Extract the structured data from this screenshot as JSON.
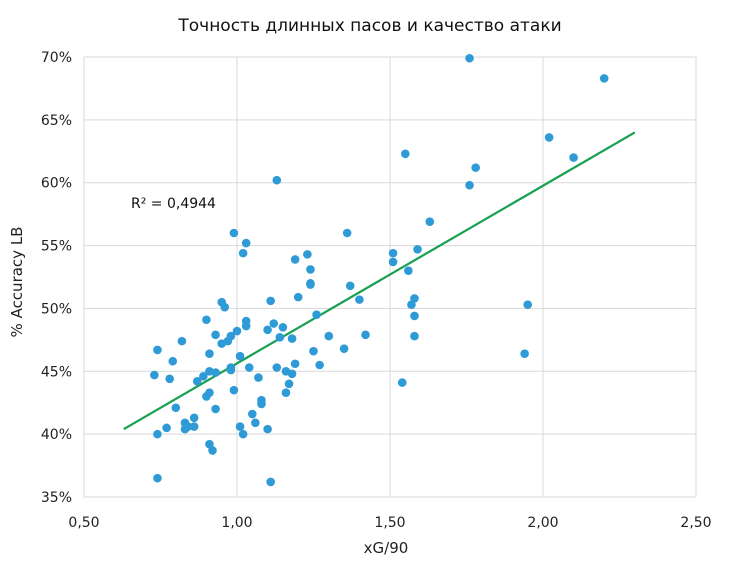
{
  "chart_data": {
    "type": "scatter",
    "title": "Точность длинных пасов и качество атаки",
    "xlabel": "xG/90",
    "ylabel": "% Accuracy LB",
    "xlim": [
      0.5,
      2.5
    ],
    "ylim": [
      35,
      70
    ],
    "x_ticks": [
      0.5,
      1.0,
      1.5,
      2.0,
      2.5
    ],
    "x_tick_labels": [
      "0,50",
      "1,00",
      "1,50",
      "2,00",
      "2,50"
    ],
    "y_ticks": [
      35,
      40,
      45,
      50,
      55,
      60,
      65,
      70
    ],
    "y_tick_labels": [
      "35%",
      "40%",
      "45%",
      "50%",
      "55%",
      "60%",
      "65%",
      "70%"
    ],
    "grid": true,
    "point_color": "#2e9bd6",
    "trendline": {
      "color": "#16a050",
      "x": [
        0.63,
        2.3
      ],
      "y": [
        40.4,
        64.0
      ],
      "r2_label": "R² = 0,4944"
    },
    "points": [
      [
        0.73,
        44.7
      ],
      [
        0.74,
        46.7
      ],
      [
        0.74,
        40.0
      ],
      [
        0.74,
        36.5
      ],
      [
        0.77,
        40.5
      ],
      [
        0.78,
        44.4
      ],
      [
        0.79,
        45.8
      ],
      [
        0.8,
        42.1
      ],
      [
        0.82,
        47.4
      ],
      [
        0.83,
        40.4
      ],
      [
        0.83,
        40.9
      ],
      [
        0.84,
        40.6
      ],
      [
        0.86,
        41.3
      ],
      [
        0.86,
        40.6
      ],
      [
        0.87,
        44.2
      ],
      [
        0.89,
        44.6
      ],
      [
        0.9,
        43.0
      ],
      [
        0.9,
        49.1
      ],
      [
        0.91,
        46.4
      ],
      [
        0.91,
        43.3
      ],
      [
        0.91,
        39.2
      ],
      [
        0.91,
        45.0
      ],
      [
        0.92,
        38.7
      ],
      [
        0.93,
        44.9
      ],
      [
        0.93,
        42.0
      ],
      [
        0.93,
        47.9
      ],
      [
        0.95,
        47.2
      ],
      [
        0.95,
        50.5
      ],
      [
        0.96,
        50.1
      ],
      [
        0.97,
        47.4
      ],
      [
        0.98,
        47.8
      ],
      [
        0.98,
        45.1
      ],
      [
        0.98,
        45.3
      ],
      [
        0.99,
        56.0
      ],
      [
        0.99,
        43.5
      ],
      [
        1.0,
        48.2
      ],
      [
        1.01,
        46.2
      ],
      [
        1.01,
        40.6
      ],
      [
        1.02,
        54.4
      ],
      [
        1.02,
        40.0
      ],
      [
        1.03,
        48.6
      ],
      [
        1.03,
        49.0
      ],
      [
        1.03,
        55.2
      ],
      [
        1.04,
        45.3
      ],
      [
        1.05,
        41.6
      ],
      [
        1.06,
        40.9
      ],
      [
        1.07,
        44.5
      ],
      [
        1.08,
        42.7
      ],
      [
        1.08,
        42.4
      ],
      [
        1.1,
        40.4
      ],
      [
        1.1,
        48.3
      ],
      [
        1.11,
        50.6
      ],
      [
        1.11,
        36.2
      ],
      [
        1.12,
        48.8
      ],
      [
        1.13,
        60.2
      ],
      [
        1.13,
        45.3
      ],
      [
        1.14,
        47.7
      ],
      [
        1.15,
        48.5
      ],
      [
        1.16,
        43.3
      ],
      [
        1.16,
        45.0
      ],
      [
        1.17,
        44.0
      ],
      [
        1.18,
        47.6
      ],
      [
        1.18,
        44.8
      ],
      [
        1.19,
        53.9
      ],
      [
        1.19,
        45.6
      ],
      [
        1.2,
        50.9
      ],
      [
        1.23,
        54.3
      ],
      [
        1.24,
        52.0
      ],
      [
        1.24,
        53.1
      ],
      [
        1.24,
        51.9
      ],
      [
        1.25,
        46.6
      ],
      [
        1.26,
        49.5
      ],
      [
        1.27,
        45.5
      ],
      [
        1.3,
        47.8
      ],
      [
        1.35,
        46.8
      ],
      [
        1.36,
        56.0
      ],
      [
        1.37,
        51.8
      ],
      [
        1.4,
        50.7
      ],
      [
        1.42,
        47.9
      ],
      [
        1.51,
        54.4
      ],
      [
        1.51,
        53.7
      ],
      [
        1.54,
        44.1
      ],
      [
        1.55,
        62.3
      ],
      [
        1.56,
        53.0
      ],
      [
        1.57,
        50.3
      ],
      [
        1.58,
        50.8
      ],
      [
        1.58,
        49.4
      ],
      [
        1.58,
        47.8
      ],
      [
        1.59,
        54.7
      ],
      [
        1.63,
        56.9
      ],
      [
        1.76,
        59.8
      ],
      [
        1.76,
        69.9
      ],
      [
        1.78,
        61.2
      ],
      [
        1.94,
        46.4
      ],
      [
        1.95,
        50.3
      ],
      [
        2.02,
        63.6
      ],
      [
        2.1,
        62.0
      ],
      [
        2.2,
        68.3
      ]
    ]
  }
}
